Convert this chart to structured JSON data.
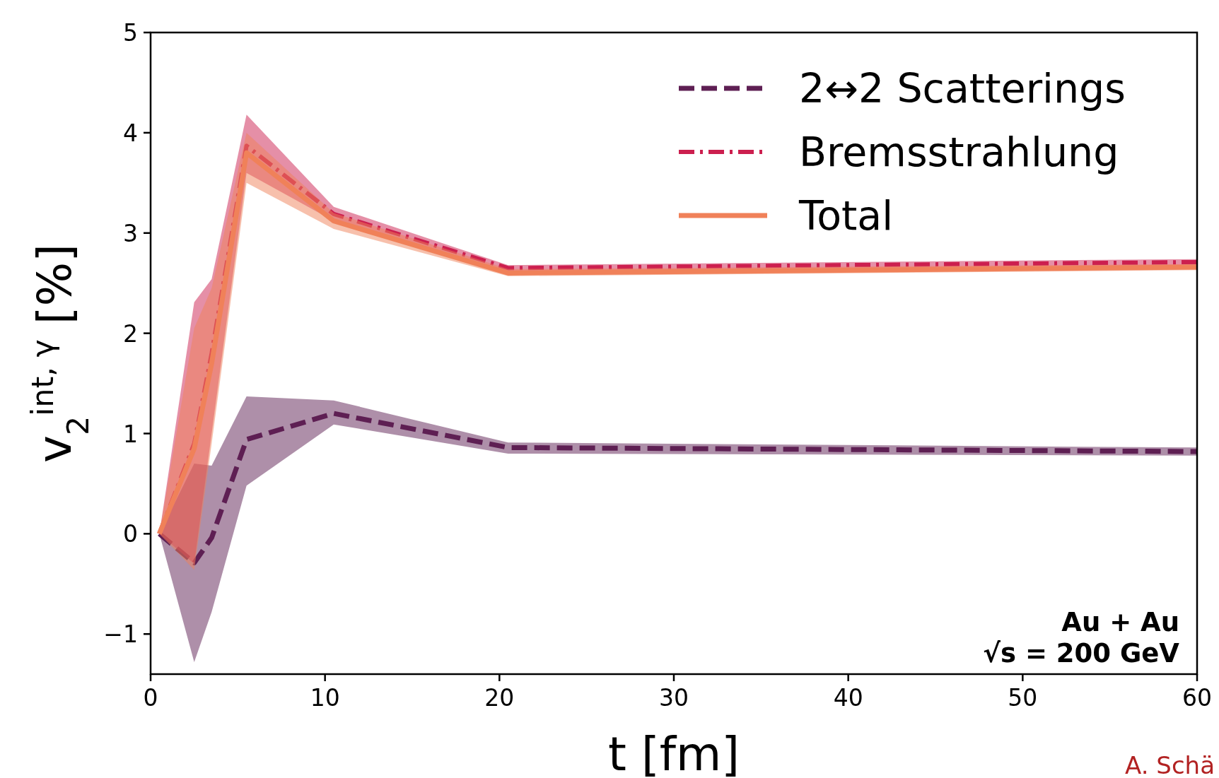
{
  "chart_data": {
    "type": "line",
    "xlabel": "t [fm]",
    "ylabel": "v$_{2}$$^{int, γ}$ [%]",
    "x": [
      0.5,
      2.5,
      3.5,
      5.5,
      10.5,
      20.5,
      60
    ],
    "series": [
      {
        "name": "2↔2 Scatterings",
        "color": "#5e1f53",
        "line_style": "dashed",
        "values": [
          0,
          -0.29,
          -0.04,
          0.94,
          1.2,
          0.86,
          0.82
        ],
        "lower": [
          0,
          -1.28,
          -0.78,
          0.48,
          1.09,
          0.8,
          0.78
        ],
        "upper": [
          0,
          0.7,
          0.68,
          1.37,
          1.33,
          0.91,
          0.86
        ]
      },
      {
        "name": "Bremsstrahlung",
        "color": "#cc1f4f",
        "line_style": "dashdot",
        "values": [
          0,
          0.9,
          1.8,
          3.87,
          3.19,
          2.65,
          2.71
        ],
        "lower": [
          0,
          -0.3,
          1.0,
          3.6,
          3.12,
          2.62,
          2.68
        ],
        "upper": [
          0,
          2.31,
          2.54,
          4.18,
          3.26,
          2.68,
          2.74
        ]
      },
      {
        "name": "Total",
        "color": "#f08159",
        "line_style": "solid",
        "values": [
          0,
          0.85,
          1.7,
          3.8,
          3.12,
          2.6,
          2.66
        ],
        "lower": [
          0,
          -0.36,
          0.9,
          3.5,
          3.04,
          2.57,
          2.63
        ],
        "upper": [
          0,
          2.05,
          2.45,
          4.0,
          3.2,
          2.64,
          2.69
        ]
      }
    ],
    "xlim": [
      0,
      60
    ],
    "xticks": [
      0,
      10,
      20,
      30,
      40,
      50,
      60
    ],
    "ylim": [
      -1.4,
      5
    ],
    "yticks": [
      {
        "value": -1,
        "label": "−1"
      },
      0,
      1,
      2,
      3,
      4,
      5
    ],
    "grid": false,
    "legend": "top right",
    "marker": "none",
    "annotations": [
      "Au + Au",
      "√s = 200 GeV",
      "A. Schä"
    ]
  }
}
